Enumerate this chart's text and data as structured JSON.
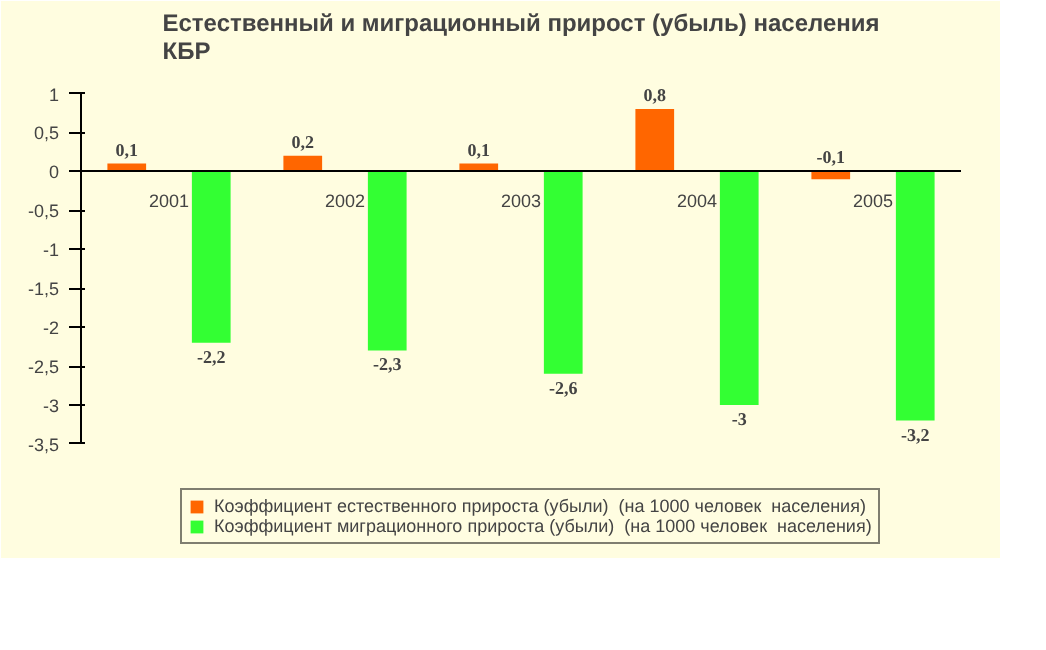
{
  "chart_data": {
    "type": "bar",
    "title": "Естественный и миграционный прирост (убыль) населения\nКБР",
    "categories": [
      "2001",
      "2002",
      "2003",
      "2004",
      "2005"
    ],
    "series": [
      {
        "name": "Коэффициент естественного прироста (убыли)  (на 1000 человек  населения)",
        "color": "#ff6600",
        "values": [
          0.1,
          0.2,
          0.1,
          0.8,
          -0.1
        ],
        "value_labels": [
          "0,1",
          "0,2",
          "0,1",
          "0,8",
          "-0,1"
        ]
      },
      {
        "name": "Коэффициент миграционного прироста (убыли)  (на 1000 человек  населения)",
        "color": "#33ff33",
        "values": [
          -2.2,
          -2.3,
          -2.6,
          -3,
          -3.2
        ],
        "value_labels": [
          "-2,2",
          "-2,3",
          "-2,6",
          "-3",
          "-3,2"
        ]
      }
    ],
    "ylim": [
      -3.5,
      1
    ],
    "yticks": [
      {
        "value": 1,
        "label": "1"
      },
      {
        "value": 0.5,
        "label": "0,5"
      },
      {
        "value": 0,
        "label": "0"
      },
      {
        "value": -0.5,
        "label": "-0,5"
      },
      {
        "value": -1,
        "label": "-1"
      },
      {
        "value": -1.5,
        "label": "-1,5"
      },
      {
        "value": -2,
        "label": "-2"
      },
      {
        "value": -2.5,
        "label": "-2,5"
      },
      {
        "value": -3,
        "label": "-3"
      },
      {
        "value": -3.5,
        "label": "-3,5"
      }
    ],
    "grid": false,
    "legend": "bottom"
  }
}
